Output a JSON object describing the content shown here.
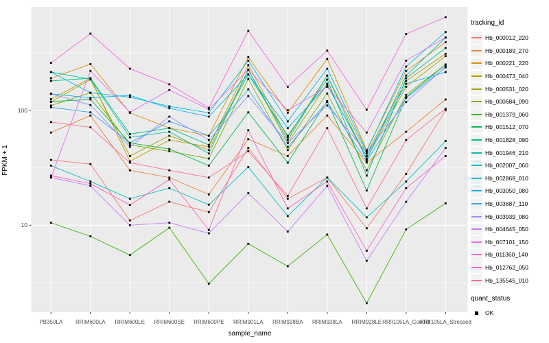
{
  "chart_data": {
    "type": "line",
    "title": "",
    "xlabel": "sample_name",
    "ylabel": "FPKM + 1",
    "y_scale": "log10",
    "y_ticks": [
      10,
      100
    ],
    "y_minor_ticks": [
      3.162,
      31.62,
      316.2
    ],
    "ylim": [
      1.75,
      790
    ],
    "grid": "on",
    "legend_position": "right",
    "legend_title": "tracking_id",
    "marker_legend": {
      "title": "quant_status",
      "items": [
        "OK"
      ]
    },
    "panel_bg": "#EBEBEB",
    "grid_color": "#FFFFFF",
    "tick_text_color": "#4D4D4D",
    "categories": [
      "PB350LA",
      "RRIM600LA",
      "RRIM600LE",
      "RRIM600SE",
      "RRIM600PE",
      "RRIM901LA",
      "RRIM928BA",
      "RRIM928LA",
      "RRIM928LE",
      "RRII105LA_Control",
      "RRII105LA_Stressed"
    ],
    "series": [
      {
        "name": "Hb_000012_220",
        "color": "#F8766D",
        "values": [
          37,
          34,
          11,
          16,
          13,
          47,
          17,
          26,
          9.4,
          28,
          100
        ]
      },
      {
        "name": "Hb_000189_270",
        "color": "#EA8331",
        "values": [
          64,
          90,
          30,
          26,
          18.5,
          56,
          40,
          90,
          35,
          65,
          124
        ]
      },
      {
        "name": "Hb_000221_220",
        "color": "#D89000",
        "values": [
          190,
          252,
          95,
          70,
          60,
          290,
          95,
          280,
          45,
          220,
          390
        ]
      },
      {
        "name": "Hb_000473_040",
        "color": "#C09B00",
        "values": [
          125,
          190,
          36,
          55,
          48,
          247,
          58,
          200,
          42,
          180,
          310
        ]
      },
      {
        "name": "Hb_000531_020",
        "color": "#A3A500",
        "values": [
          118,
          185,
          40,
          60,
          45,
          225,
          52,
          170,
          38,
          160,
          296
        ]
      },
      {
        "name": "Hb_000684_090",
        "color": "#7CAE00",
        "values": [
          110,
          142,
          50,
          44,
          38,
          187,
          45,
          140,
          30,
          136,
          250
        ]
      },
      {
        "name": "Hb_001379_060",
        "color": "#39B600",
        "values": [
          10.5,
          8,
          5.5,
          9.5,
          3.1,
          6.9,
          4.4,
          8.3,
          2.1,
          9.2,
          15.5
        ]
      },
      {
        "name": "Hb_001512_070",
        "color": "#00BB4E",
        "values": [
          119,
          124,
          52,
          46,
          33,
          96,
          35,
          120,
          20,
          130,
          250
        ]
      },
      {
        "name": "Hb_001828_090",
        "color": "#00BF7D",
        "values": [
          180,
          190,
          62,
          70,
          50,
          205,
          60,
          185,
          27,
          190,
          348
        ]
      },
      {
        "name": "Hb_001946_210",
        "color": "#00C1A3",
        "values": [
          215,
          186,
          58,
          65,
          42,
          225,
          55,
          200,
          37,
          200,
          428
        ]
      },
      {
        "name": "Hb_002007_060",
        "color": "#00BFC4",
        "values": [
          33,
          24,
          17,
          21,
          15.1,
          32,
          12,
          26,
          11.7,
          24,
          54
        ]
      },
      {
        "name": "Hb_002868_010",
        "color": "#00BAE0",
        "values": [
          215,
          142,
          130,
          108,
          95,
          270,
          80,
          230,
          44,
          240,
          479
        ]
      },
      {
        "name": "Hb_003050_080",
        "color": "#00B0F6",
        "values": [
          139,
          128,
          135,
          104,
          88,
          205,
          70,
          165,
          40,
          170,
          215
        ]
      },
      {
        "name": "Hb_003687_110",
        "color": "#35A2FF",
        "values": [
          106,
          96,
          52,
          80,
          60,
          152,
          48,
          118,
          36,
          128,
          236
        ]
      },
      {
        "name": "Hb_003939_080",
        "color": "#9590FF",
        "values": [
          139,
          111,
          48,
          88,
          55,
          133,
          52,
          110,
          43,
          118,
          240
        ]
      },
      {
        "name": "Hb_004645_050",
        "color": "#C77CFF",
        "values": [
          26,
          22,
          10,
          10.5,
          8.5,
          19,
          8.8,
          22,
          4.9,
          16,
          47
        ]
      },
      {
        "name": "Hb_007101_150",
        "color": "#E76BF3",
        "values": [
          26,
          220,
          96,
          150,
          102,
          225,
          100,
          160,
          64,
          270,
          430
        ]
      },
      {
        "name": "Hb_011360_140",
        "color": "#FA62DB",
        "values": [
          258,
          464,
          230,
          168,
          105,
          490,
          160,
          330,
          101,
          460,
          645
        ]
      },
      {
        "name": "Hb_012762_050",
        "color": "#FF62BC",
        "values": [
          27,
          23,
          15,
          25,
          9.1,
          67,
          14,
          24,
          6,
          21,
          40
        ]
      },
      {
        "name": "Hb_135545_010",
        "color": "#FF6A98",
        "values": [
          79,
          71,
          35,
          30,
          26,
          44,
          18,
          70,
          14,
          55,
          103
        ]
      }
    ]
  }
}
